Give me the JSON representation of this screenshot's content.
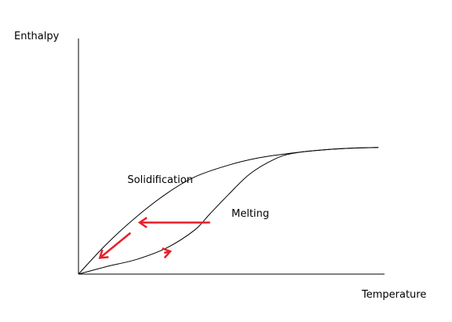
{
  "chart_data": {
    "type": "line",
    "title": "",
    "xlabel": "Temperature",
    "ylabel": "Enthalpy",
    "xlim": [
      0,
      10
    ],
    "ylim": [
      0,
      8
    ],
    "grid": false,
    "legend": "none",
    "series": [
      {
        "name": "Solidification",
        "color": "#000000",
        "x": [
          0,
          0.9,
          1.9,
          2.9,
          3.8,
          4.9,
          5.9,
          6.9,
          7.8,
          8.8,
          9.8
        ],
        "y": [
          0,
          1.0,
          1.95,
          2.75,
          3.3,
          3.7,
          3.95,
          4.1,
          4.2,
          4.27,
          4.3
        ]
      },
      {
        "name": "Melting",
        "color": "#000000",
        "x": [
          0,
          0.9,
          1.9,
          2.9,
          3.8,
          4.3,
          4.9,
          5.6,
          6.4,
          7.0,
          7.8,
          8.8,
          9.8
        ],
        "y": [
          0,
          0.25,
          0.5,
          0.9,
          1.5,
          2.05,
          2.7,
          3.4,
          3.9,
          4.1,
          4.2,
          4.27,
          4.3
        ]
      }
    ],
    "annotations": [
      {
        "label": "Solidification",
        "x": 1.6,
        "y": 3.1
      },
      {
        "label": "Melting",
        "x": 5.0,
        "y": 1.95
      }
    ],
    "arrows": [
      {
        "color": "#e8202a",
        "from": [
          4.3,
          1.75
        ],
        "to": [
          2.0,
          1.75
        ]
      },
      {
        "color": "#e8202a",
        "from": [
          1.7,
          1.4
        ],
        "to": [
          0.7,
          0.55
        ]
      },
      {
        "color": "#e8202a",
        "from": [
          2.8,
          0.72
        ],
        "to": [
          3.0,
          0.77
        ]
      }
    ]
  }
}
